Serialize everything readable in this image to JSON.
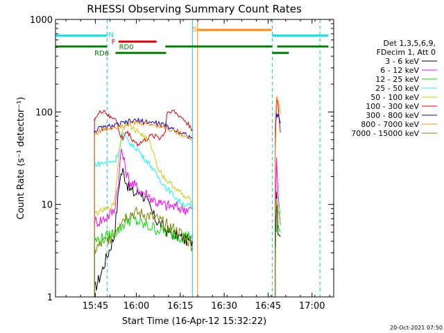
{
  "colors": {
    "background": "#ffffff",
    "axis": "#000000",
    "cyan": "#00e5e5",
    "red": "#e00000",
    "green": "#008000",
    "orange": "#ff8c00",
    "dashed": "#00cccc"
  },
  "chart_data": {
    "type": "line",
    "title": "RHESSI Observing Summary Count Rates",
    "xlabel": "Start Time (16-Apr-12 15:32:22)",
    "ylabel": "Count Rate (s⁻¹ detector⁻¹)",
    "x_unit": "minutes after 15:32:22",
    "xlim": [
      0,
      95
    ],
    "ylim": [
      1,
      1000
    ],
    "yscale": "log",
    "x_ticks": [
      {
        "x": 13.6,
        "label": "15:45"
      },
      {
        "x": 27.6,
        "label": "16:00"
      },
      {
        "x": 42.6,
        "label": "16:15"
      },
      {
        "x": 57.6,
        "label": "16:30"
      },
      {
        "x": 72.6,
        "label": "16:45"
      },
      {
        "x": 87.6,
        "label": "17:00"
      }
    ],
    "y_ticks": [
      {
        "y": 1,
        "label": "1"
      },
      {
        "y": 10,
        "label": "10"
      },
      {
        "y": 100,
        "label": "100"
      },
      {
        "y": 1000,
        "label": "1000"
      }
    ],
    "vlines": [
      {
        "x": 17.6,
        "color": "#00cccc",
        "style": "dashed"
      },
      {
        "x": 48.5,
        "color": "#ff8c00",
        "style": "solid"
      },
      {
        "x": 74.0,
        "color": "#00cccc",
        "style": "dashed"
      },
      {
        "x": 90.3,
        "color": "#00cccc",
        "style": "dashed"
      },
      {
        "x": 46.8,
        "color": "#00e5e5",
        "style": "solid"
      }
    ],
    "flag_bars": [
      {
        "label": "N",
        "color": "#00e5e5",
        "y": 670,
        "segments": [
          [
            0,
            17.6
          ],
          [
            74.0,
            93.2
          ]
        ],
        "label_x": 18.1,
        "label_y": 690
      },
      {
        "label": "S",
        "color": "#ff8c00",
        "y": 770,
        "segments": [
          [
            48.5,
            73.8
          ]
        ],
        "label_x": 46.8,
        "label_y": 790
      },
      {
        "label": "F",
        "color": "#e00000",
        "y": 575,
        "segments": [
          [
            21.5,
            34.5
          ]
        ],
        "label_x": 19.1,
        "label_y": 580
      },
      {
        "label": "RD0",
        "color": "#008000",
        "y": 510,
        "segments": [
          [
            0,
            17.6
          ],
          [
            37.5,
            74.0
          ],
          [
            75.7,
            78.5
          ],
          [
            78.5,
            93.2
          ]
        ],
        "label_x": 21.7,
        "label_y": 510
      },
      {
        "label": "RD6",
        "color": "#008000",
        "y": 435,
        "segments": [
          [
            20.5,
            37.8
          ],
          [
            74.0,
            79.7
          ]
        ],
        "label_x": 13.3,
        "label_y": 435
      }
    ],
    "legend_header": [
      "Det 1,3,5,6,9,",
      "FDecim 1, Att 0"
    ],
    "legend_position": "right",
    "timestamp": "20-Oct-2021 07:50",
    "segments": [
      [
        13.3,
        46.8
      ],
      [
        75.0,
        76.8
      ]
    ],
    "series": [
      {
        "name": "3 - 6 keV",
        "color": "#000000",
        "points": [
          [
            13.3,
            1.2
          ],
          [
            15.0,
            1.6
          ],
          [
            16.5,
            2.2
          ],
          [
            18.0,
            3.0
          ],
          [
            20.0,
            4.5
          ],
          [
            21.0,
            9
          ],
          [
            22.0,
            20
          ],
          [
            23.0,
            23
          ],
          [
            25.0,
            15
          ],
          [
            27.0,
            13
          ],
          [
            29.0,
            14
          ],
          [
            31.0,
            11
          ],
          [
            34.0,
            7
          ],
          [
            36.0,
            6.0
          ],
          [
            38.0,
            5.2
          ],
          [
            40.0,
            4.8
          ],
          [
            42.0,
            4.5
          ],
          [
            44.0,
            4.2
          ],
          [
            46.8,
            4.0
          ],
          [
            75.0,
            2.5
          ],
          [
            75.5,
            15
          ],
          [
            76.0,
            5.5
          ],
          [
            76.8,
            4.5
          ]
        ]
      },
      {
        "name": "6 - 12 keV",
        "color": "#ff00ff",
        "points": [
          [
            13.3,
            6.5
          ],
          [
            16.0,
            6.8
          ],
          [
            20.0,
            8.5
          ],
          [
            21.5,
            18
          ],
          [
            22.5,
            40
          ],
          [
            23.5,
            28
          ],
          [
            25.0,
            18
          ],
          [
            27.0,
            16
          ],
          [
            29.0,
            14
          ],
          [
            31.0,
            13
          ],
          [
            34.0,
            11
          ],
          [
            36.0,
            10
          ],
          [
            40.0,
            9.5
          ],
          [
            44.0,
            9.0
          ],
          [
            46.8,
            9.0
          ],
          [
            75.0,
            6
          ],
          [
            75.5,
            30
          ],
          [
            76.0,
            12
          ],
          [
            76.8,
            8
          ]
        ]
      },
      {
        "name": "12 - 25 keV",
        "color": "#00e000",
        "points": [
          [
            13.3,
            4.0
          ],
          [
            18.0,
            4.5
          ],
          [
            22.0,
            5.5
          ],
          [
            24.0,
            6.5
          ],
          [
            26.0,
            7.0
          ],
          [
            28.0,
            6.5
          ],
          [
            30.0,
            6.0
          ],
          [
            34.0,
            5.5
          ],
          [
            38.0,
            5.0
          ],
          [
            42.0,
            4.6
          ],
          [
            46.8,
            4.5
          ],
          [
            75.0,
            3.5
          ],
          [
            75.5,
            5.5
          ],
          [
            76.0,
            6.0
          ],
          [
            76.8,
            5.0
          ]
        ]
      },
      {
        "name": "25 - 50 keV",
        "color": "#00ffff",
        "points": [
          [
            13.3,
            27
          ],
          [
            16.0,
            28
          ],
          [
            19.0,
            29
          ],
          [
            20.5,
            30
          ],
          [
            22.0,
            42
          ],
          [
            23.0,
            58
          ],
          [
            24.5,
            50
          ],
          [
            26.5,
            42
          ],
          [
            28.0,
            40
          ],
          [
            30.0,
            32
          ],
          [
            32.0,
            28
          ],
          [
            34.0,
            22
          ],
          [
            36.0,
            18
          ],
          [
            38.0,
            15
          ],
          [
            40.0,
            13
          ],
          [
            42.0,
            11
          ],
          [
            44.0,
            10
          ],
          [
            46.8,
            9.5
          ],
          [
            75.0,
            6.0
          ],
          [
            75.5,
            12
          ],
          [
            76.0,
            10
          ],
          [
            76.8,
            8
          ]
        ]
      },
      {
        "name": "50 - 100 keV",
        "color": "#cccc00",
        "points": [
          [
            13.3,
            8
          ],
          [
            18.0,
            9
          ],
          [
            20.0,
            10
          ],
          [
            21.0,
            20
          ],
          [
            22.0,
            45
          ],
          [
            23.0,
            65
          ],
          [
            24.0,
            78
          ],
          [
            25.0,
            75
          ],
          [
            26.0,
            68
          ],
          [
            28.0,
            62
          ],
          [
            30.0,
            55
          ],
          [
            32.0,
            48
          ],
          [
            33.0,
            40
          ],
          [
            34.0,
            32
          ],
          [
            35.0,
            25
          ],
          [
            36.0,
            22
          ],
          [
            38.0,
            18
          ],
          [
            40.0,
            16
          ],
          [
            42.0,
            14
          ],
          [
            44.0,
            12
          ],
          [
            46.8,
            11
          ],
          [
            75.0,
            6.5
          ],
          [
            75.5,
            12
          ],
          [
            76.0,
            9
          ],
          [
            76.8,
            7
          ]
        ]
      },
      {
        "name": "100 - 300 keV",
        "color": "#e00000",
        "points": [
          [
            13.3,
            85
          ],
          [
            14.5,
            92
          ],
          [
            15.5,
            100
          ],
          [
            16.5,
            105
          ],
          [
            17.6,
            95
          ],
          [
            18.5,
            86
          ],
          [
            20.5,
            88
          ],
          [
            22.0,
            55
          ],
          [
            23.0,
            52
          ],
          [
            24.0,
            60
          ],
          [
            25.0,
            58
          ],
          [
            26.0,
            52
          ],
          [
            27.0,
            48
          ],
          [
            28.0,
            45
          ],
          [
            29.0,
            46
          ],
          [
            30.0,
            48
          ],
          [
            31.5,
            52
          ],
          [
            33.0,
            55
          ],
          [
            34.5,
            56
          ],
          [
            35.5,
            52
          ],
          [
            36.5,
            55
          ],
          [
            37.5,
            62
          ],
          [
            38.0,
            95
          ],
          [
            39.0,
            105
          ],
          [
            40.5,
            100
          ],
          [
            42.0,
            92
          ],
          [
            43.5,
            85
          ],
          [
            45.0,
            75
          ],
          [
            46.8,
            65
          ],
          [
            75.0,
            40
          ],
          [
            75.3,
            90
          ],
          [
            75.5,
            130
          ],
          [
            76.0,
            120
          ],
          [
            76.5,
            75
          ],
          [
            76.8,
            60
          ]
        ]
      },
      {
        "name": "300 - 800 keV",
        "color": "#0000e0",
        "points": [
          [
            13.3,
            62
          ],
          [
            15.0,
            66
          ],
          [
            17.0,
            68
          ],
          [
            19.0,
            70
          ],
          [
            21.0,
            72
          ],
          [
            23.0,
            75
          ],
          [
            25.0,
            78
          ],
          [
            27.0,
            80
          ],
          [
            29.0,
            80
          ],
          [
            31.0,
            78
          ],
          [
            33.0,
            77
          ],
          [
            35.0,
            75
          ],
          [
            37.0,
            72
          ],
          [
            39.0,
            68
          ],
          [
            41.0,
            64
          ],
          [
            43.0,
            60
          ],
          [
            45.0,
            56
          ],
          [
            46.8,
            52
          ],
          [
            75.0,
            60
          ],
          [
            75.5,
            95
          ],
          [
            76.0,
            90
          ],
          [
            76.8,
            75
          ]
        ]
      },
      {
        "name": "800 - 7000 keV",
        "color": "#ff8c00",
        "points": [
          [
            13.3,
            58
          ],
          [
            15.0,
            62
          ],
          [
            17.0,
            65
          ],
          [
            19.0,
            68
          ],
          [
            21.0,
            70
          ],
          [
            23.0,
            72
          ],
          [
            25.0,
            75
          ],
          [
            27.0,
            76
          ],
          [
            29.0,
            76
          ],
          [
            31.0,
            75
          ],
          [
            33.0,
            74
          ],
          [
            35.0,
            72
          ],
          [
            37.0,
            69
          ],
          [
            39.0,
            65
          ],
          [
            41.0,
            62
          ],
          [
            43.0,
            58
          ],
          [
            45.0,
            55
          ],
          [
            46.8,
            50
          ],
          [
            75.0,
            70
          ],
          [
            75.5,
            140
          ],
          [
            76.0,
            135
          ],
          [
            76.8,
            95
          ]
        ]
      },
      {
        "name": "7000 - 15000 keV",
        "color": "#808000",
        "points": [
          [
            13.3,
            3.2
          ],
          [
            16.0,
            3.8
          ],
          [
            18.0,
            4.2
          ],
          [
            20.0,
            5.0
          ],
          [
            22.0,
            6.5
          ],
          [
            24.0,
            7.5
          ],
          [
            26.0,
            8.0
          ],
          [
            28.0,
            8.0
          ],
          [
            30.0,
            7.8
          ],
          [
            32.0,
            7.5
          ],
          [
            34.0,
            7.0
          ],
          [
            36.0,
            6.5
          ],
          [
            38.0,
            6.0
          ],
          [
            40.0,
            5.5
          ],
          [
            42.0,
            5.0
          ],
          [
            44.0,
            4.5
          ],
          [
            46.8,
            3.5
          ],
          [
            75.0,
            7
          ],
          [
            75.5,
            10
          ],
          [
            76.0,
            8.5
          ],
          [
            76.8,
            6
          ]
        ]
      }
    ]
  }
}
